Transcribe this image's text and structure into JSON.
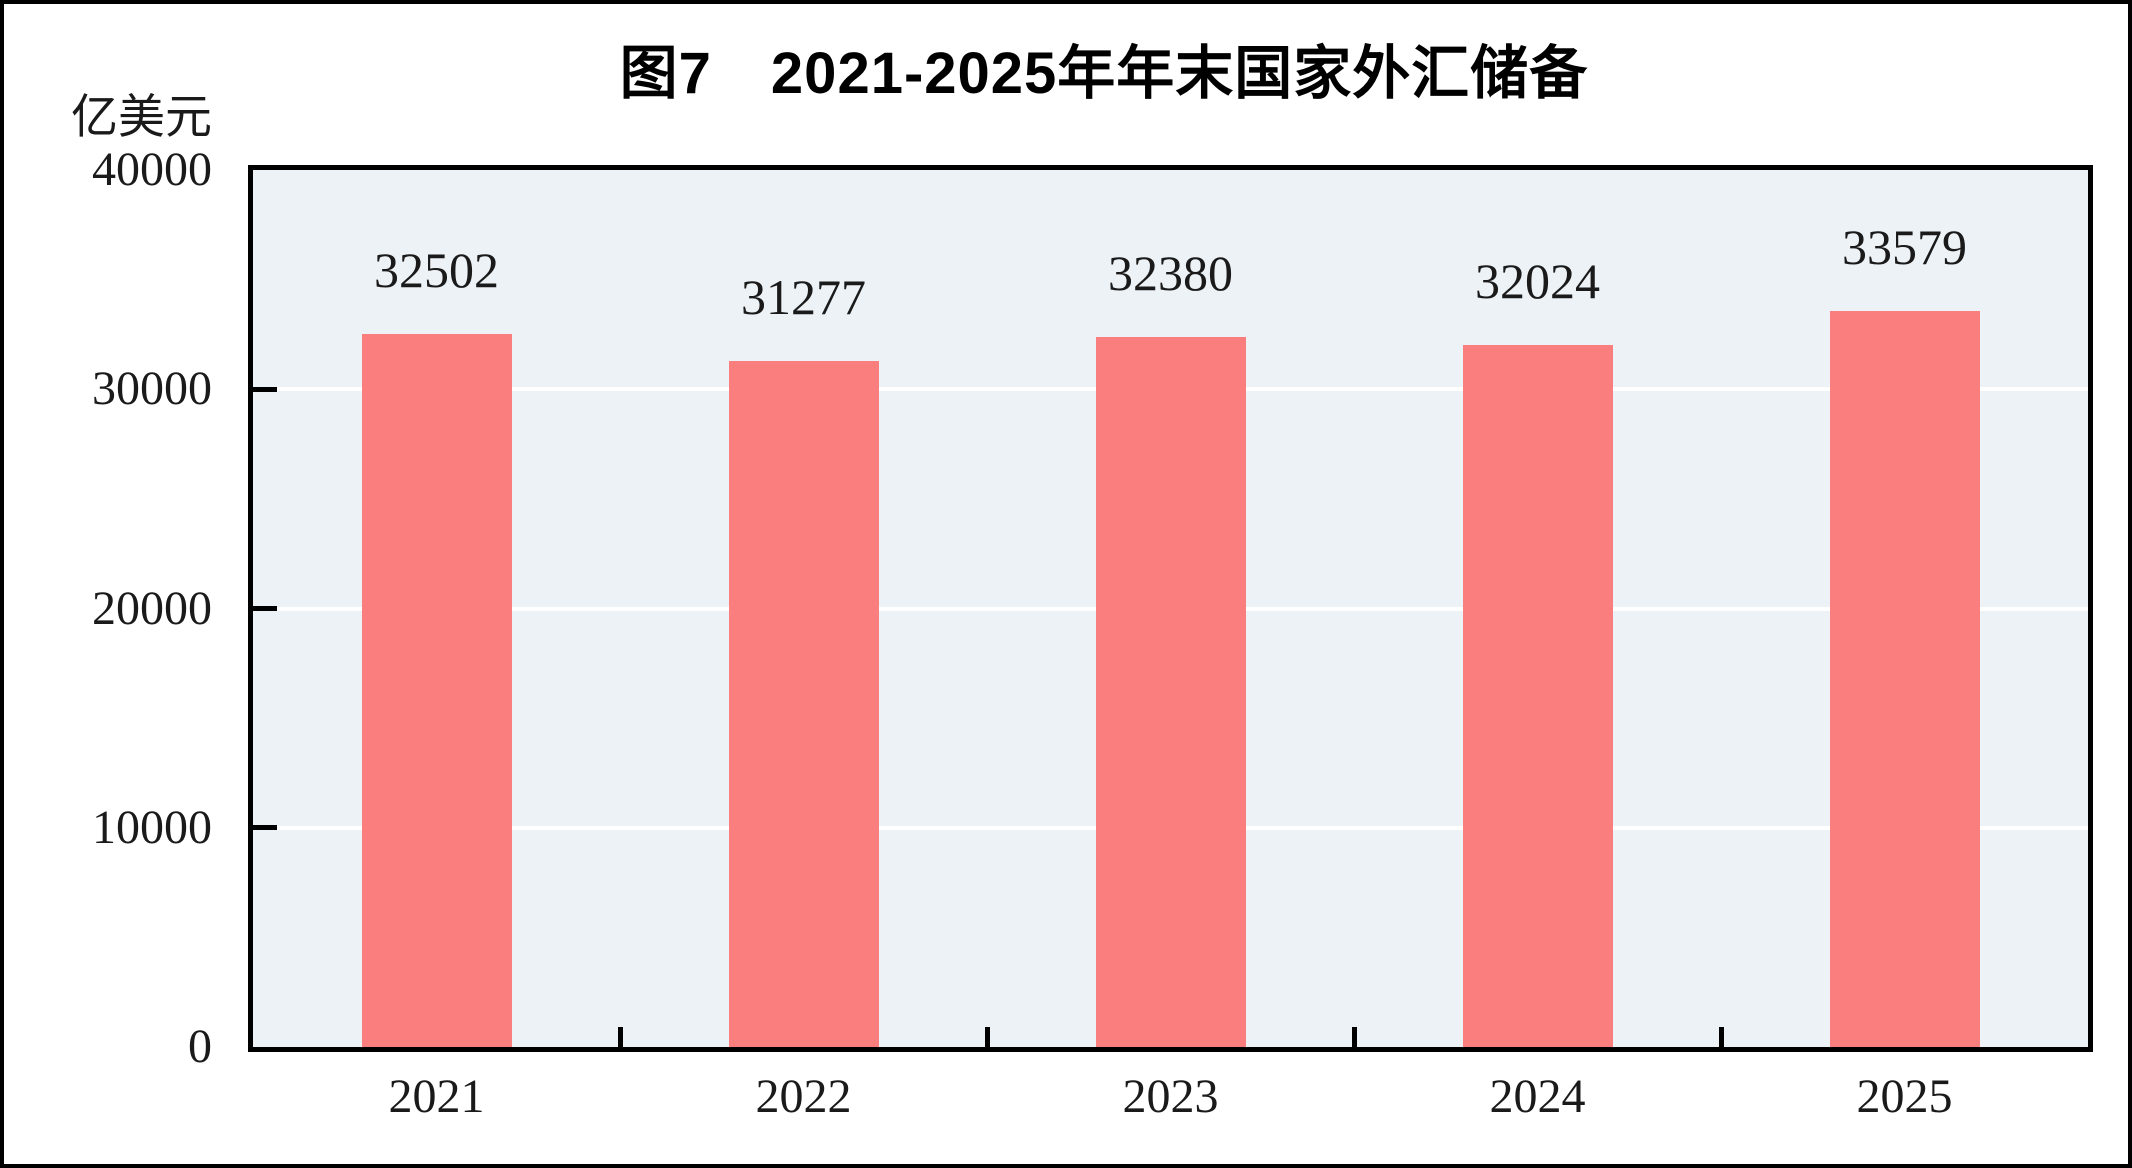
{
  "figure": {
    "title": "图7　2021-2025年年末国家外汇储备",
    "unit_label": "亿美元"
  },
  "chart_data": {
    "type": "bar",
    "title": "图7　2021-2025年年末国家外汇储备",
    "ylabel": "亿美元",
    "xlabel": "",
    "categories": [
      "2021",
      "2022",
      "2023",
      "2024",
      "2025"
    ],
    "values": [
      32502,
      31277,
      32380,
      32024,
      33579
    ],
    "data_labels": [
      "32502",
      "31277",
      "32380",
      "32024",
      "33579"
    ],
    "ylim": [
      0,
      40000
    ],
    "yticks": [
      "0",
      "10000",
      "20000",
      "30000",
      "40000"
    ],
    "ytick_values": [
      0,
      10000,
      20000,
      30000,
      40000
    ],
    "grid": "horizontal white gridlines at major ticks",
    "legend_position": "none",
    "colors": {
      "bar": "#FB7E7E",
      "plot_background": "#ECF2F6",
      "gridline": "#FFFFFF",
      "axis": "#000000",
      "text": "#1A1A1A"
    }
  }
}
